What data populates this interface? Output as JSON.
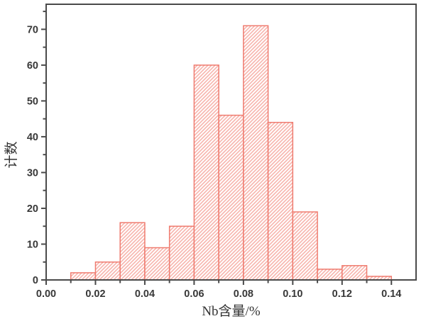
{
  "chart_data": {
    "type": "bar",
    "subtype": "histogram",
    "title": "",
    "xlabel": "Nb含量/%",
    "ylabel": "计数",
    "bin_width": 0.01,
    "bin_starts": [
      0.01,
      0.02,
      0.03,
      0.04,
      0.05,
      0.06,
      0.07,
      0.08,
      0.09,
      0.1,
      0.11,
      0.12,
      0.13
    ],
    "values": [
      2,
      5,
      16,
      9,
      15,
      60,
      46,
      71,
      44,
      19,
      3,
      4,
      1
    ],
    "xlim": [
      0,
      0.15
    ],
    "ylim": [
      0,
      77
    ],
    "x_major_ticks": [
      0,
      0.02,
      0.04,
      0.06,
      0.08,
      0.1,
      0.12,
      0.14
    ],
    "x_tick_labels": [
      "0.00",
      "0.02",
      "0.04",
      "0.06",
      "0.08",
      "0.10",
      "0.12",
      "0.14"
    ],
    "x_minor_ticks": [
      0.01,
      0.03,
      0.05,
      0.07,
      0.09,
      0.11,
      0.13
    ],
    "y_major_ticks": [
      0,
      10,
      20,
      30,
      40,
      50,
      60,
      70
    ],
    "y_tick_labels": [
      "0",
      "10",
      "20",
      "30",
      "40",
      "50",
      "60",
      "70"
    ],
    "y_minor_ticks": [
      5,
      15,
      25,
      35,
      45,
      55,
      65,
      75
    ],
    "grid": false,
    "legend": null,
    "styles": {
      "bar_fill": "#ffffff",
      "bar_hatch_color": "#f7b5ad",
      "bar_edge_color": "#ef7b6f",
      "hatch_direction": "/",
      "axis_color": "#4a4a4a",
      "tick_label_color": "#383838"
    }
  }
}
